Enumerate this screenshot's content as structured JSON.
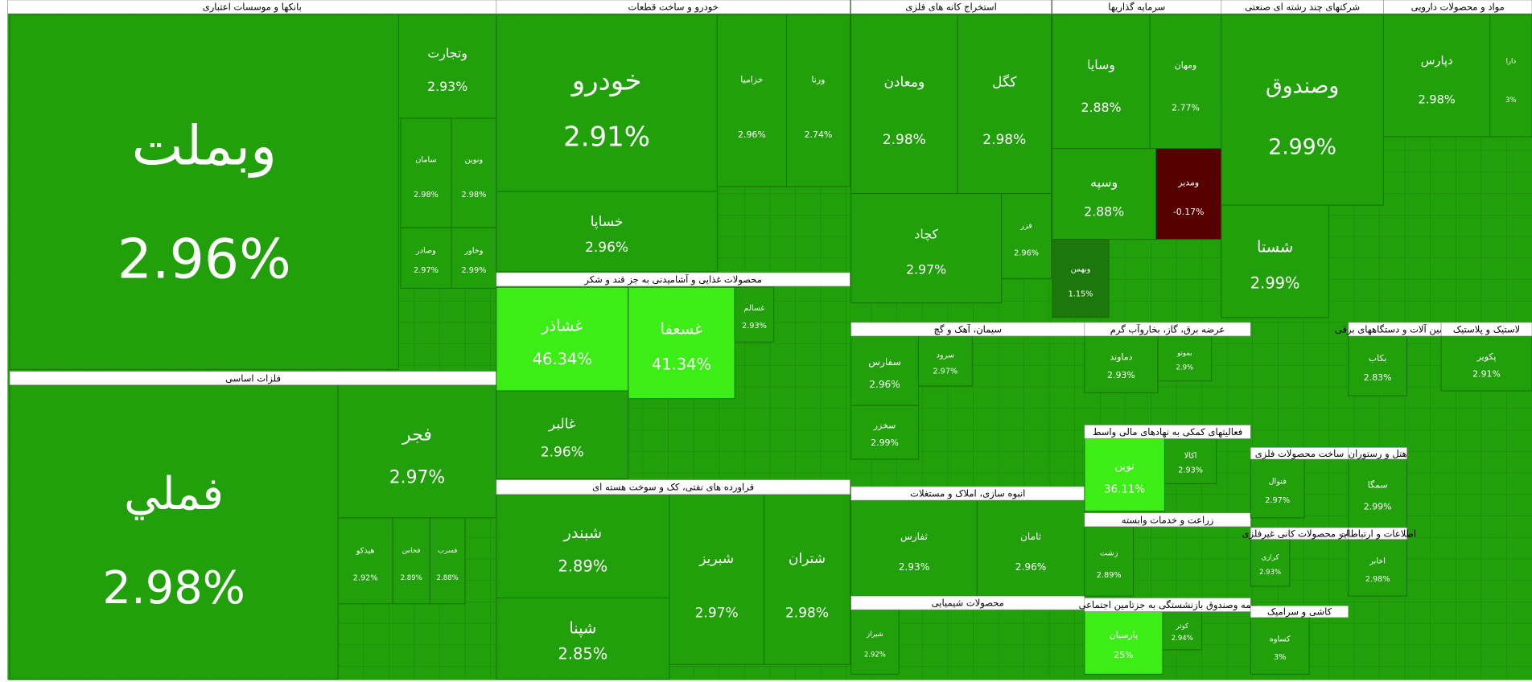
{
  "chart_data": {
    "type": "treemap",
    "sectors": [
      {
        "name": "بانکها و موسسات اعتباری",
        "tiles": [
          "وبملت",
          "وتجارت",
          "سامان",
          "ونوین",
          "وصادر",
          "وخاور"
        ],
        "values": [
          2.96,
          2.93,
          2.98,
          2.98,
          2.97,
          2.99
        ],
        "value_labels": [
          "2.96%",
          "2.93%",
          "2.98%",
          "2.98%",
          "2.97%",
          "2.99%"
        ]
      },
      {
        "name": "فلزات اساسی",
        "tiles": [
          "فملي",
          "فجر",
          "هیدکو",
          "فخاس",
          "فسرب"
        ],
        "values": [
          2.98,
          2.97,
          2.92,
          2.89,
          2.88
        ],
        "value_labels": [
          "2.98%",
          "2.97%",
          "2.92%",
          "2.89%",
          "2.88%"
        ]
      },
      {
        "name": "خودرو و ساخت قطعات",
        "tiles": [
          "خودرو",
          "خساپا",
          "خزامیا",
          "ورنا"
        ],
        "values": [
          2.91,
          2.96,
          2.96,
          2.74
        ],
        "value_labels": [
          "2.91%",
          "2.96%",
          "2.96%",
          "2.74%"
        ]
      },
      {
        "name": "محصولات غذایی و آشامیدنی به جز قند و شکر",
        "tiles": [
          "غشاذر",
          "غسعفا",
          "غالبر",
          "غسالم"
        ],
        "values": [
          46.34,
          41.34,
          2.96,
          2.93
        ],
        "value_labels": [
          "46.34%",
          "41.34%",
          "2.96%",
          "2.93%"
        ]
      },
      {
        "name": "فراورده های نفتی، کک و سوخت هسته ای",
        "tiles": [
          "شبندر",
          "شپنا",
          "شبریز",
          "شتران"
        ],
        "values": [
          2.89,
          2.85,
          2.97,
          2.98
        ],
        "value_labels": [
          "2.89%",
          "2.85%",
          "2.97%",
          "2.98%"
        ]
      },
      {
        "name": "استخراج کانه های فلزی",
        "tiles": [
          "ومعادن",
          "کگل",
          "کچاد",
          "فزر"
        ],
        "values": [
          2.98,
          2.98,
          2.97,
          2.96
        ],
        "value_labels": [
          "2.98%",
          "2.98%",
          "2.97%",
          "2.96%"
        ]
      },
      {
        "name": "سرمایه گذاریها",
        "tiles": [
          "وسایا",
          "ومهان",
          "وسپه",
          "ومدیر",
          "وبهمن"
        ],
        "values": [
          2.88,
          2.77,
          2.88,
          -0.17,
          1.15
        ],
        "value_labels": [
          "2.88%",
          "2.77%",
          "2.88%",
          "-0.17%",
          "1.15%"
        ]
      },
      {
        "name": "شرکتهای چند رشته ای صنعتی",
        "tiles": [
          "وصندوق",
          "شستا"
        ],
        "values": [
          2.99,
          2.99
        ],
        "value_labels": [
          "2.99%",
          "2.99%"
        ]
      },
      {
        "name": "مواد و محصولات دارویی",
        "tiles": [
          "دپارس",
          "دارا"
        ],
        "values": [
          2.98,
          3
        ],
        "value_labels": [
          "2.98%",
          "3%"
        ]
      },
      {
        "name": "سیمان، آهک و گچ",
        "tiles": [
          "سفارس",
          "سرود",
          "سخزر"
        ],
        "values": [
          2.96,
          2.97,
          2.99
        ],
        "value_labels": [
          "2.96%",
          "2.97%",
          "2.99%"
        ]
      },
      {
        "name": "انبوه سازی، املاک و مستغلات",
        "tiles": [
          "ثفارس",
          "ثامان"
        ],
        "values": [
          2.93,
          2.96
        ],
        "value_labels": [
          "2.93%",
          "2.96%"
        ]
      },
      {
        "name": "محصولات شیمیایی",
        "tiles": [
          "شیراز"
        ],
        "values": [
          2.92
        ],
        "value_labels": [
          "2.92%"
        ]
      },
      {
        "name": "عرضه برق، گاز، بخاروآب گرم",
        "tiles": [
          "دماوند",
          "بموتو"
        ],
        "values": [
          2.93,
          2.9
        ],
        "value_labels": [
          "2.93%",
          "2.9%"
        ]
      },
      {
        "name": "فعالیتهای کمکی به نهادهای مالی واسط",
        "tiles": [
          "نوین",
          "اکالا"
        ],
        "values": [
          36.11,
          2.93
        ],
        "value_labels": [
          "36.11%",
          "2.93%"
        ]
      },
      {
        "name": "زراعت و خدمات وابسته",
        "tiles": [
          "زشت"
        ],
        "values": [
          2.89
        ],
        "value_labels": [
          "2.89%"
        ]
      },
      {
        "name": "بیمه وصندوق بازنشستگی به جزتامین اجتماعی",
        "tiles": [
          "پارسیان",
          "کوثر"
        ],
        "values": [
          25,
          2.94
        ],
        "value_labels": [
          "25%",
          "2.94%"
        ]
      },
      {
        "name": "ساخت محصولات فلزی",
        "tiles": [
          "فنوال"
        ],
        "values": [
          2.97
        ],
        "value_labels": [
          "2.97%"
        ]
      },
      {
        "name": "سایر محصولات کانی غیرفلزی",
        "tiles": [
          "کرازی"
        ],
        "values": [
          2.93
        ],
        "value_labels": [
          "2.93%"
        ]
      },
      {
        "name": "کاشی و سرامیک",
        "tiles": [
          "کساوه"
        ],
        "values": [
          3
        ],
        "value_labels": [
          "3%"
        ]
      },
      {
        "name": "ماشین آلات و دستگاههای برقی",
        "tiles": [
          "بکاب"
        ],
        "values": [
          2.83
        ],
        "value_labels": [
          "2.83%"
        ]
      },
      {
        "name": "لاستیک و پلاستیک",
        "tiles": [
          "پکویر"
        ],
        "values": [
          2.91
        ],
        "value_labels": [
          "2.91%"
        ]
      },
      {
        "name": "هتل و رستوران",
        "tiles": [
          "سمگا"
        ],
        "values": [
          2.99
        ],
        "value_labels": [
          "2.99%"
        ]
      },
      {
        "name": "اطلاعات و ارتباطات",
        "tiles": [
          "اخابر"
        ],
        "values": [
          2.98
        ],
        "value_labels": [
          "2.98%"
        ]
      }
    ]
  }
}
